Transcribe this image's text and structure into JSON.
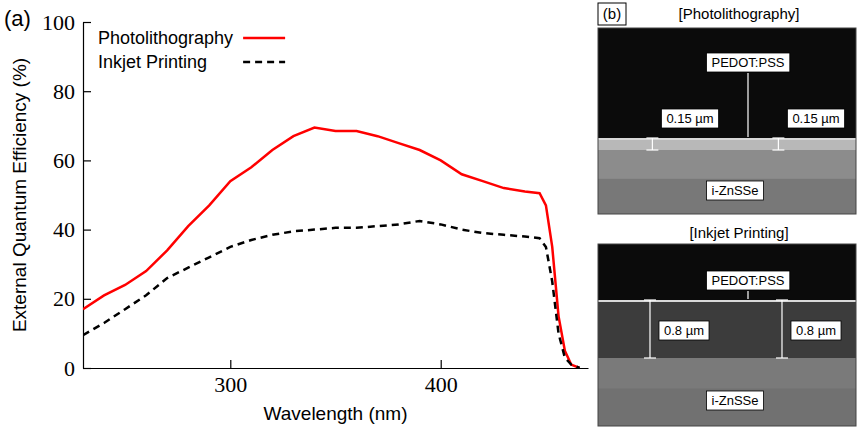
{
  "chart_data": {
    "type": "line",
    "title": "(a)",
    "x_label": "Wavelength (nm)",
    "y_label": "External Quantum Efficiency (%)",
    "x": [
      230,
      240,
      250,
      260,
      270,
      280,
      290,
      300,
      310,
      320,
      330,
      340,
      350,
      360,
      370,
      380,
      390,
      400,
      410,
      420,
      430,
      440,
      447,
      450,
      453,
      456,
      459,
      462,
      466
    ],
    "series": [
      {
        "name": "Photolithography",
        "color": "#ff0000",
        "line_style": "solid",
        "values": [
          17,
          21,
          24,
          28,
          34,
          41,
          47,
          54,
          58,
          63,
          67,
          69.5,
          68.5,
          68.5,
          67,
          65,
          63,
          60,
          56,
          54,
          52,
          51,
          50.5,
          47,
          35,
          15,
          5,
          1,
          0
        ]
      },
      {
        "name": "Inkjet Printing",
        "color": "#000000",
        "line_style": "dashed",
        "values": [
          9.5,
          13,
          17,
          21,
          26,
          29,
          32,
          35,
          37,
          38.5,
          39.5,
          40,
          40.5,
          40.5,
          41,
          41.5,
          42.5,
          41.5,
          40,
          39,
          38.5,
          38,
          37.5,
          35,
          25,
          10,
          3,
          1,
          0
        ]
      }
    ],
    "xlim": [
      230,
      470
    ],
    "xticks": [
      300,
      400
    ],
    "ylim": [
      0,
      100
    ],
    "yticks": [
      0,
      20,
      40,
      60,
      80,
      100
    ],
    "grid": false,
    "legend": "upper left"
  },
  "panel_b": {
    "label": "(b)",
    "images": [
      {
        "title": "[Photolithography]",
        "layer": "PEDOT:PSS",
        "thickness": [
          "0.15 µm",
          "0.15 µm"
        ],
        "substrate": "i-ZnSSe"
      },
      {
        "title": "[Inkjet Printing]",
        "layer": "PEDOT:PSS",
        "thickness": [
          "0.8 µm",
          "0.8 µm"
        ],
        "substrate": "i-ZnSSe"
      }
    ]
  }
}
